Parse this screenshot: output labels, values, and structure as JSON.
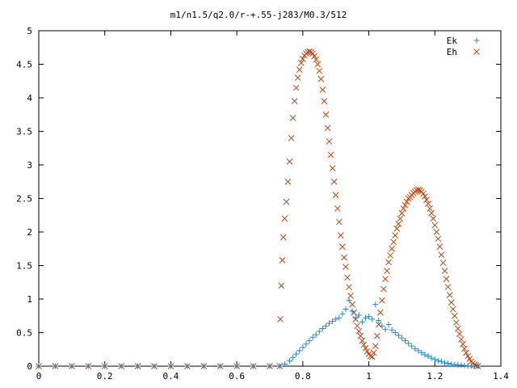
{
  "chart_data": {
    "type": "scatter",
    "title": "m1/n1.5/q2.0/r-+.55-j283/M0.3/512",
    "xlabel": "",
    "ylabel": "",
    "xlim": [
      0,
      1.4
    ],
    "ylim": [
      0,
      5
    ],
    "x_ticks": [
      "0",
      "0.2",
      "0.4",
      "0.6",
      "0.8",
      "1",
      "1.2",
      "1.4"
    ],
    "y_ticks": [
      "0",
      "0.5",
      "1",
      "1.5",
      "2",
      "2.5",
      "3",
      "3.5",
      "4",
      "4.5",
      "5"
    ],
    "legend_position": "top-right",
    "grid": false,
    "series": [
      {
        "name": "Ek",
        "marker": "plus",
        "color": "#1f8ad8",
        "points": [
          [
            0.0,
            0
          ],
          [
            0.05,
            0
          ],
          [
            0.1,
            0
          ],
          [
            0.15,
            0
          ],
          [
            0.2,
            0
          ],
          [
            0.25,
            0
          ],
          [
            0.3,
            0
          ],
          [
            0.35,
            0
          ],
          [
            0.4,
            0
          ],
          [
            0.45,
            0
          ],
          [
            0.5,
            0
          ],
          [
            0.55,
            0
          ],
          [
            0.6,
            0
          ],
          [
            0.65,
            0
          ],
          [
            0.7,
            0
          ],
          [
            0.73,
            0
          ],
          [
            0.745,
            0.03
          ],
          [
            0.76,
            0.08
          ],
          [
            0.77,
            0.13
          ],
          [
            0.78,
            0.18
          ],
          [
            0.79,
            0.23
          ],
          [
            0.8,
            0.28
          ],
          [
            0.81,
            0.33
          ],
          [
            0.82,
            0.38
          ],
          [
            0.83,
            0.43
          ],
          [
            0.84,
            0.47
          ],
          [
            0.85,
            0.52
          ],
          [
            0.86,
            0.56
          ],
          [
            0.87,
            0.6
          ],
          [
            0.88,
            0.64
          ],
          [
            0.89,
            0.67
          ],
          [
            0.9,
            0.7
          ],
          [
            0.91,
            0.72
          ],
          [
            0.92,
            0.78
          ],
          [
            0.93,
            0.85
          ],
          [
            0.94,
            0.98
          ],
          [
            0.95,
            0.82
          ],
          [
            0.96,
            0.72
          ],
          [
            0.97,
            0.76
          ],
          [
            0.98,
            0.66
          ],
          [
            0.99,
            0.72
          ],
          [
            1.0,
            0.74
          ],
          [
            1.01,
            0.7
          ],
          [
            1.02,
            0.92
          ],
          [
            1.03,
            0.68
          ],
          [
            1.04,
            0.6
          ],
          [
            1.05,
            0.55
          ],
          [
            1.06,
            0.62
          ],
          [
            1.07,
            0.54
          ],
          [
            1.08,
            0.5
          ],
          [
            1.09,
            0.46
          ],
          [
            1.1,
            0.42
          ],
          [
            1.11,
            0.38
          ],
          [
            1.12,
            0.34
          ],
          [
            1.13,
            0.3
          ],
          [
            1.14,
            0.26
          ],
          [
            1.15,
            0.23
          ],
          [
            1.16,
            0.2
          ],
          [
            1.17,
            0.17
          ],
          [
            1.18,
            0.15
          ],
          [
            1.19,
            0.12
          ],
          [
            1.2,
            0.1
          ],
          [
            1.21,
            0.08
          ],
          [
            1.22,
            0.07
          ],
          [
            1.23,
            0.05
          ],
          [
            1.24,
            0.04
          ],
          [
            1.25,
            0.03
          ],
          [
            1.26,
            0.025
          ],
          [
            1.27,
            0.02
          ],
          [
            1.28,
            0.015
          ],
          [
            1.29,
            0.01
          ],
          [
            1.3,
            0.005
          ],
          [
            1.31,
            0.003
          ],
          [
            1.32,
            0.002
          ],
          [
            1.33,
            0.001
          ]
        ]
      },
      {
        "name": "Eh",
        "marker": "cross",
        "color": "#c1440e",
        "points": [
          [
            0.0,
            0
          ],
          [
            0.05,
            0
          ],
          [
            0.1,
            0
          ],
          [
            0.15,
            0
          ],
          [
            0.2,
            0
          ],
          [
            0.25,
            0
          ],
          [
            0.3,
            0
          ],
          [
            0.35,
            0
          ],
          [
            0.4,
            0
          ],
          [
            0.45,
            0
          ],
          [
            0.5,
            0
          ],
          [
            0.55,
            0
          ],
          [
            0.6,
            0
          ],
          [
            0.65,
            0
          ],
          [
            0.7,
            0
          ],
          [
            0.73,
            0
          ],
          [
            0.732,
            0.7
          ],
          [
            0.735,
            1.2
          ],
          [
            0.738,
            1.58
          ],
          [
            0.741,
            1.92
          ],
          [
            0.745,
            2.2
          ],
          [
            0.75,
            2.45
          ],
          [
            0.755,
            2.75
          ],
          [
            0.76,
            3.05
          ],
          [
            0.765,
            3.4
          ],
          [
            0.77,
            3.7
          ],
          [
            0.775,
            3.95
          ],
          [
            0.78,
            4.15
          ],
          [
            0.785,
            4.3
          ],
          [
            0.79,
            4.42
          ],
          [
            0.795,
            4.52
          ],
          [
            0.8,
            4.58
          ],
          [
            0.805,
            4.63
          ],
          [
            0.81,
            4.66
          ],
          [
            0.815,
            4.68
          ],
          [
            0.82,
            4.69
          ],
          [
            0.825,
            4.68
          ],
          [
            0.83,
            4.66
          ],
          [
            0.835,
            4.62
          ],
          [
            0.84,
            4.57
          ],
          [
            0.845,
            4.5
          ],
          [
            0.85,
            4.4
          ],
          [
            0.855,
            4.28
          ],
          [
            0.86,
            4.12
          ],
          [
            0.865,
            3.95
          ],
          [
            0.87,
            3.75
          ],
          [
            0.875,
            3.55
          ],
          [
            0.88,
            3.35
          ],
          [
            0.885,
            3.15
          ],
          [
            0.89,
            2.95
          ],
          [
            0.895,
            2.75
          ],
          [
            0.9,
            2.55
          ],
          [
            0.905,
            2.35
          ],
          [
            0.91,
            2.15
          ],
          [
            0.915,
            1.95
          ],
          [
            0.92,
            1.78
          ],
          [
            0.925,
            1.62
          ],
          [
            0.93,
            1.48
          ],
          [
            0.935,
            1.32
          ],
          [
            0.94,
            1.18
          ],
          [
            0.945,
            1.05
          ],
          [
            0.95,
            0.92
          ],
          [
            0.955,
            0.8
          ],
          [
            0.96,
            0.7
          ],
          [
            0.965,
            0.6
          ],
          [
            0.97,
            0.52
          ],
          [
            0.975,
            0.45
          ],
          [
            0.98,
            0.38
          ],
          [
            0.985,
            0.32
          ],
          [
            0.99,
            0.27
          ],
          [
            0.995,
            0.22
          ],
          [
            1.0,
            0.18
          ],
          [
            1.005,
            0.15
          ],
          [
            1.01,
            0.14
          ],
          [
            1.015,
            0.2
          ],
          [
            1.02,
            0.3
          ],
          [
            1.025,
            0.45
          ],
          [
            1.03,
            0.62
          ],
          [
            1.035,
            0.8
          ],
          [
            1.04,
            0.98
          ],
          [
            1.045,
            1.15
          ],
          [
            1.05,
            1.3
          ],
          [
            1.055,
            1.42
          ],
          [
            1.06,
            1.55
          ],
          [
            1.065,
            1.65
          ],
          [
            1.07,
            1.75
          ],
          [
            1.075,
            1.85
          ],
          [
            1.08,
            1.95
          ],
          [
            1.085,
            2.05
          ],
          [
            1.09,
            2.12
          ],
          [
            1.095,
            2.2
          ],
          [
            1.1,
            2.28
          ],
          [
            1.105,
            2.35
          ],
          [
            1.11,
            2.4
          ],
          [
            1.115,
            2.45
          ],
          [
            1.12,
            2.5
          ],
          [
            1.125,
            2.52
          ],
          [
            1.13,
            2.55
          ],
          [
            1.135,
            2.58
          ],
          [
            1.14,
            2.6
          ],
          [
            1.145,
            2.62
          ],
          [
            1.15,
            2.63
          ],
          [
            1.155,
            2.62
          ],
          [
            1.16,
            2.6
          ],
          [
            1.165,
            2.57
          ],
          [
            1.17,
            2.53
          ],
          [
            1.175,
            2.48
          ],
          [
            1.18,
            2.42
          ],
          [
            1.185,
            2.35
          ],
          [
            1.19,
            2.28
          ],
          [
            1.195,
            2.2
          ],
          [
            1.2,
            2.1
          ],
          [
            1.205,
            2.0
          ],
          [
            1.21,
            1.9
          ],
          [
            1.215,
            1.78
          ],
          [
            1.22,
            1.66
          ],
          [
            1.225,
            1.54
          ],
          [
            1.23,
            1.42
          ],
          [
            1.235,
            1.3
          ],
          [
            1.24,
            1.18
          ],
          [
            1.245,
            1.06
          ],
          [
            1.25,
            0.95
          ],
          [
            1.255,
            0.85
          ],
          [
            1.26,
            0.75
          ],
          [
            1.265,
            0.65
          ],
          [
            1.27,
            0.56
          ],
          [
            1.275,
            0.48
          ],
          [
            1.28,
            0.4
          ],
          [
            1.285,
            0.33
          ],
          [
            1.29,
            0.26
          ],
          [
            1.295,
            0.2
          ],
          [
            1.3,
            0.15
          ],
          [
            1.305,
            0.11
          ],
          [
            1.31,
            0.07
          ],
          [
            1.315,
            0.04
          ],
          [
            1.32,
            0.02
          ],
          [
            1.325,
            0.01
          ],
          [
            1.33,
            0.0
          ]
        ]
      }
    ]
  }
}
